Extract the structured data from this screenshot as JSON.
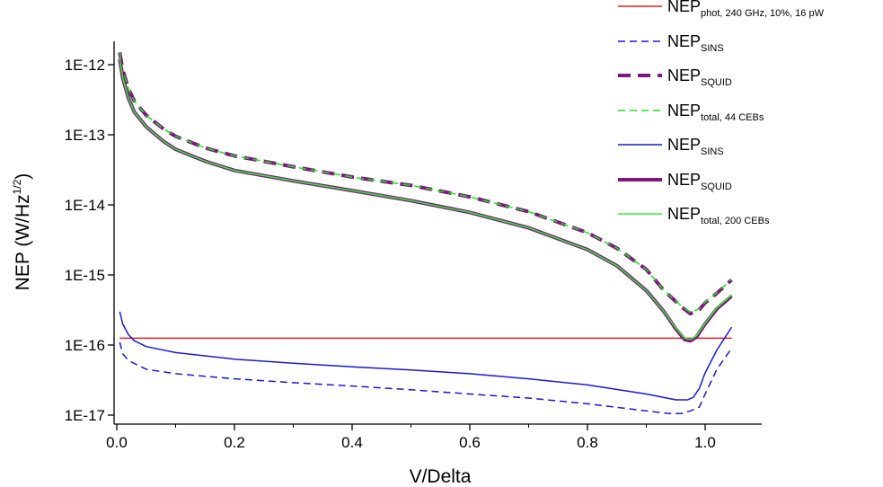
{
  "chart_data": {
    "type": "line",
    "title": "",
    "xlabel": "V/Delta",
    "ylabel": "NEP (W/Hz",
    "ylabel_sup": "1/2",
    "ylabel_close": ")",
    "xlim": [
      0.0,
      1.08
    ],
    "ylim": [
      1e-17,
      2e-12
    ],
    "yscale": "log",
    "grid": false,
    "legend_position": "top-right",
    "xticks": [
      {
        "value": 0.0,
        "label": "0.0"
      },
      {
        "value": 0.2,
        "label": "0.2"
      },
      {
        "value": 0.4,
        "label": "0.4"
      },
      {
        "value": 0.6,
        "label": "0.6"
      },
      {
        "value": 0.8,
        "label": "0.8"
      },
      {
        "value": 1.0,
        "label": "1.0"
      }
    ],
    "yticks": [
      {
        "value": 1e-12,
        "label": "1E-12"
      },
      {
        "value": 1e-13,
        "label": "1E-13"
      },
      {
        "value": 1e-14,
        "label": "1E-14"
      },
      {
        "value": 1e-15,
        "label": "1E-15"
      },
      {
        "value": 1e-16,
        "label": "1E-16"
      },
      {
        "value": 1e-17,
        "label": "1E-17"
      }
    ],
    "series": [
      {
        "name": "NEP",
        "sub": "phot, 240 GHz, 10%, 16 pW",
        "color": "#e02020",
        "dash": "solid",
        "width": 1.5,
        "x": [
          0.005,
          1.045
        ],
        "y": [
          1.25e-16,
          1.25e-16
        ]
      },
      {
        "name": "NEP",
        "sub": "SINS",
        "color": "#1a1acc",
        "dash": "dashed",
        "width": 1.5,
        "x": [
          0.005,
          0.01,
          0.02,
          0.05,
          0.1,
          0.2,
          0.3,
          0.4,
          0.5,
          0.6,
          0.7,
          0.8,
          0.9,
          0.94,
          0.96,
          0.975,
          0.99,
          1.0,
          1.02,
          1.045
        ],
        "y": [
          1.1e-16,
          7.5e-17,
          6e-17,
          4.5e-17,
          3.9e-17,
          3.3e-17,
          2.9e-17,
          2.6e-17,
          2.3e-17,
          2e-17,
          1.75e-17,
          1.45e-17,
          1.15e-17,
          1.05e-17,
          1.05e-17,
          1.15e-17,
          1.3e-17,
          2e-17,
          4.5e-17,
          9e-17
        ]
      },
      {
        "name": "NEP",
        "sub": "SQUID",
        "color": "#7a1a7a",
        "dash": "dashed",
        "width": 4,
        "x": [
          0.005,
          0.01,
          0.02,
          0.03,
          0.05,
          0.08,
          0.1,
          0.15,
          0.2,
          0.3,
          0.4,
          0.5,
          0.6,
          0.7,
          0.8,
          0.85,
          0.9,
          0.93,
          0.96,
          0.975,
          0.99,
          1.0,
          1.02,
          1.045
        ],
        "y": [
          1.5e-12,
          8.5e-13,
          4.5e-13,
          3e-13,
          1.9e-13,
          1.2e-13,
          9.5e-14,
          6.5e-14,
          5e-14,
          3.5e-14,
          2.5e-14,
          1.9e-14,
          1.3e-14,
          8e-15,
          4e-15,
          2.4e-15,
          1.2e-15,
          6e-16,
          3.5e-16,
          2.8e-16,
          3.2e-16,
          4e-16,
          5.5e-16,
          8.5e-16
        ]
      },
      {
        "name": "NEP",
        "sub": "total, 44 CEBs",
        "color": "#22dd22",
        "dash": "dashed",
        "width": 1.5,
        "x": [
          0.005,
          0.01,
          0.02,
          0.03,
          0.05,
          0.08,
          0.1,
          0.15,
          0.2,
          0.3,
          0.4,
          0.5,
          0.6,
          0.7,
          0.8,
          0.85,
          0.9,
          0.93,
          0.96,
          0.975,
          0.99,
          1.0,
          1.02,
          1.045
        ],
        "y": [
          1.5e-12,
          8.5e-13,
          4.5e-13,
          3e-13,
          1.9e-13,
          1.2e-13,
          9.5e-14,
          6.5e-14,
          5e-14,
          3.5e-14,
          2.5e-14,
          1.9e-14,
          1.3e-14,
          8e-15,
          4e-15,
          2.4e-15,
          1.2e-15,
          6e-16,
          3.6e-16,
          2.9e-16,
          3.3e-16,
          4.1e-16,
          5.6e-16,
          8.6e-16
        ]
      },
      {
        "name": "NEP",
        "sub": "SINS",
        "color": "#1a1acc",
        "dash": "solid",
        "width": 1.5,
        "x": [
          0.005,
          0.01,
          0.02,
          0.03,
          0.05,
          0.1,
          0.2,
          0.3,
          0.4,
          0.5,
          0.6,
          0.7,
          0.8,
          0.9,
          0.95,
          0.97,
          0.98,
          0.99,
          1.0,
          1.02,
          1.045
        ],
        "y": [
          3e-16,
          2e-16,
          1.4e-16,
          1.15e-16,
          9.5e-17,
          7.8e-17,
          6.3e-17,
          5.5e-17,
          4.9e-17,
          4.4e-17,
          3.9e-17,
          3.3e-17,
          2.7e-17,
          2e-17,
          1.65e-17,
          1.65e-17,
          1.8e-17,
          2.4e-17,
          4e-17,
          8.5e-17,
          1.8e-16
        ]
      },
      {
        "name": "NEP",
        "sub": "SQUID",
        "color": "#7a1a7a",
        "dash": "solid",
        "width": 4,
        "x": [
          0.005,
          0.01,
          0.02,
          0.03,
          0.05,
          0.08,
          0.1,
          0.15,
          0.2,
          0.3,
          0.4,
          0.5,
          0.6,
          0.7,
          0.8,
          0.85,
          0.9,
          0.93,
          0.95,
          0.965,
          0.975,
          0.985,
          1.0,
          1.02,
          1.045
        ],
        "y": [
          1.2e-12,
          6.5e-13,
          3.3e-13,
          2.1e-13,
          1.3e-13,
          8e-14,
          6.2e-14,
          4.2e-14,
          3.1e-14,
          2.2e-14,
          1.6e-14,
          1.15e-14,
          7.8e-15,
          4.7e-15,
          2.3e-15,
          1.35e-15,
          6e-16,
          3e-16,
          1.7e-16,
          1.2e-16,
          1.15e-16,
          1.3e-16,
          2e-16,
          3.3e-16,
          5e-16
        ]
      },
      {
        "name": "NEP",
        "sub": "total, 200 CEBs",
        "color": "#33ee33",
        "dash": "solid",
        "width": 1.5,
        "x": [
          0.005,
          0.01,
          0.02,
          0.03,
          0.05,
          0.08,
          0.1,
          0.15,
          0.2,
          0.3,
          0.4,
          0.5,
          0.6,
          0.7,
          0.8,
          0.85,
          0.9,
          0.93,
          0.95,
          0.965,
          0.975,
          0.985,
          1.0,
          1.02,
          1.045
        ],
        "y": [
          1.2e-12,
          6.5e-13,
          3.3e-13,
          2.1e-13,
          1.3e-13,
          8e-14,
          6.2e-14,
          4.2e-14,
          3.1e-14,
          2.2e-14,
          1.6e-14,
          1.15e-14,
          7.8e-15,
          4.7e-15,
          2.3e-15,
          1.35e-15,
          6e-16,
          3e-16,
          1.75e-16,
          1.25e-16,
          1.2e-16,
          1.35e-16,
          2.05e-16,
          3.4e-16,
          5.2e-16
        ]
      }
    ]
  }
}
